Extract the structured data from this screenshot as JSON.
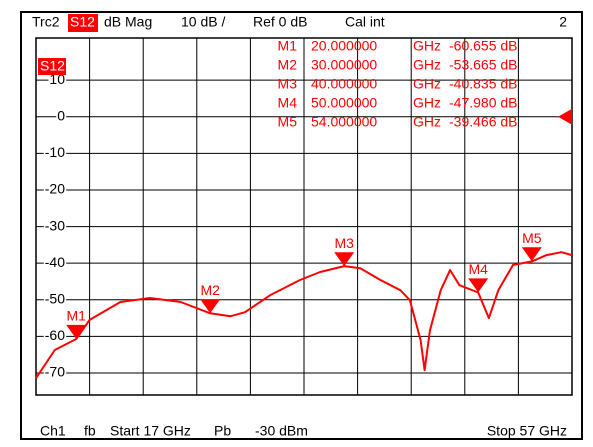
{
  "header": {
    "trace": "Trc2",
    "param": "S12",
    "format": "dB Mag",
    "scale": "10 dB /",
    "ref": "Ref 0 dB",
    "cal": "Cal int",
    "channel": "2"
  },
  "footer": {
    "channel": "Ch1",
    "fb": "fb",
    "start": "Start 17 GHz",
    "pb": "Pb",
    "power": "-30 dBm",
    "stop": "Stop 57 GHz"
  },
  "chart_data": {
    "type": "line",
    "trace_label": "S12",
    "xlim": [
      17,
      57
    ],
    "ylim": [
      -76,
      21.5
    ],
    "yticks": [
      10,
      0,
      -10,
      -20,
      -30,
      -40,
      -50,
      -60,
      -70
    ],
    "grid": true,
    "ref_value": 0,
    "series": [
      {
        "name": "S12",
        "color": "#ff0000",
        "x": [
          17,
          18.4,
          20,
          21,
          23.3,
          25.5,
          27.8,
          30,
          31.5,
          32.6,
          34.5,
          36.7,
          38.2,
          40,
          41.2,
          42.7,
          44.2,
          44.9,
          45.7,
          46,
          46.4,
          47.2,
          47.9,
          48.6,
          50,
          50.8,
          51.5,
          52.6,
          54,
          55.1,
          56.2,
          57
        ],
        "values": [
          -71.4,
          -63.7,
          -60.7,
          -55.5,
          -50.6,
          -49.5,
          -50.6,
          -53.7,
          -54.5,
          -53.4,
          -48.7,
          -44.6,
          -42.4,
          -40.8,
          -41.4,
          -44.6,
          -47.4,
          -50.1,
          -61.0,
          -69.2,
          -58.3,
          -47.4,
          -41.9,
          -46.0,
          -48.0,
          -55.0,
          -47.4,
          -40.5,
          -39.5,
          -37.8,
          -37.0,
          -37.8
        ]
      }
    ],
    "markers": [
      {
        "name": "M1",
        "x": 20,
        "x_label": "20.000000",
        "unit": "GHz",
        "value": -60.655,
        "value_label": "-60.655 dB"
      },
      {
        "name": "M2",
        "x": 30,
        "x_label": "30.000000",
        "unit": "GHz",
        "value": -53.665,
        "value_label": "-53.665 dB"
      },
      {
        "name": "M3",
        "x": 40,
        "x_label": "40.000000",
        "unit": "GHz",
        "value": -40.835,
        "value_label": "-40.835 dB"
      },
      {
        "name": "M4",
        "x": 50,
        "x_label": "50.000000",
        "unit": "GHz",
        "value": -47.98,
        "value_label": "-47.980 dB"
      },
      {
        "name": "M5",
        "x": 54,
        "x_label": "54.000000",
        "unit": "GHz",
        "value": -39.466,
        "value_label": "-39.466 dB"
      }
    ]
  }
}
